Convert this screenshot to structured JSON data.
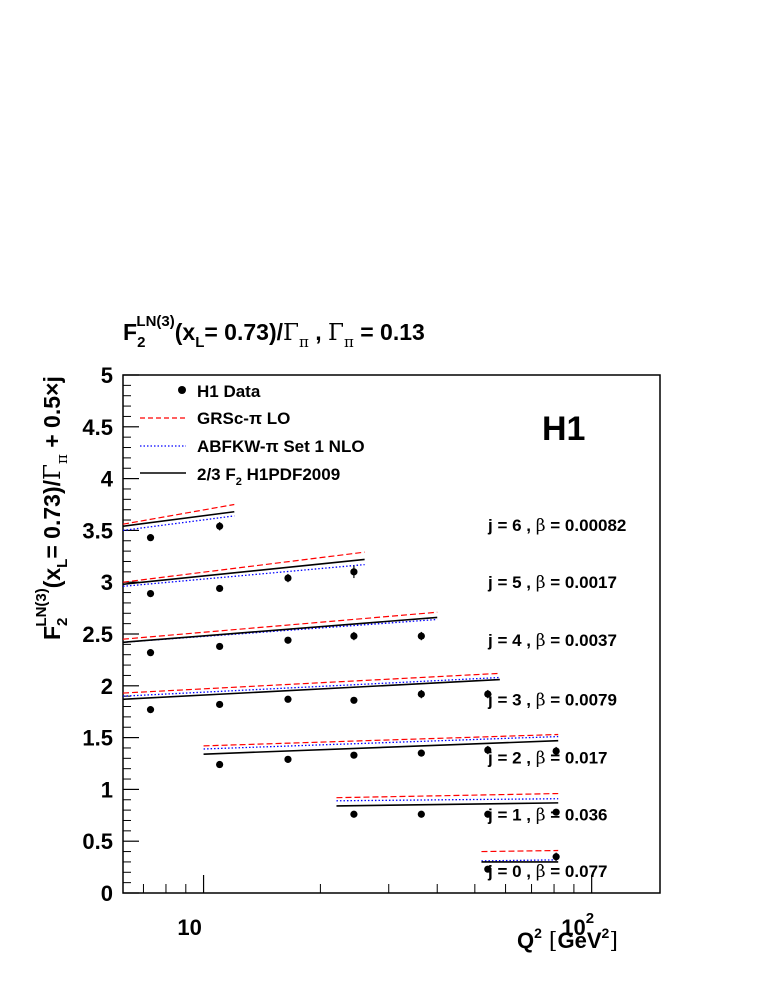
{
  "chart_data": {
    "type": "scatter",
    "title": {
      "F": "F",
      "sub": "2",
      "sup": "LN(3)",
      "arg": "(x",
      "argsub": "L",
      "argrest": "= 0.73)/",
      "gamma": "Γ",
      "gammasub": "π",
      "comma": " , ",
      "gamma2": "Γ",
      "gamma2sub": "π",
      "eq": " = 0.13"
    },
    "ylabel": {
      "F": "F",
      "sub": "2",
      "sup": "LN(3)",
      "arg": "(x",
      "argsub": "L",
      "argrest": "= 0.73)/",
      "gamma": "Γ",
      "gammasub": "π",
      "tail": " + 0.5×j"
    },
    "xlabel": {
      "Q": "Q",
      "sup": "2",
      "lb": " [",
      "unit": "GeV",
      "unitsup": "2",
      "rb": "]"
    },
    "x_scale": "log",
    "xlim": [
      6.2,
      150
    ],
    "ylim": [
      0,
      5
    ],
    "y_ticks": [
      "0",
      "0.5",
      "1",
      "1.5",
      "2",
      "2.5",
      "3",
      "3.5",
      "4",
      "4.5",
      "5"
    ],
    "x_ticks": [
      {
        "value": 10,
        "label": "10",
        "sup": ""
      },
      {
        "value": 100,
        "label": "10",
        "sup": "2"
      }
    ],
    "experiment": "H1",
    "legend": {
      "placement": "top-left",
      "entries": [
        {
          "style": "marker",
          "label": "H1 Data",
          "color": "#000000"
        },
        {
          "style": "dashed",
          "label": "GRSc-π LO",
          "color": "#ff0000"
        },
        {
          "style": "dotted",
          "label": "ABFKW-π Set 1 NLO",
          "color": "#0000ff"
        },
        {
          "style": "solid",
          "label": "2/3 F",
          "sub": "2",
          "rest": "  H1PDF2009",
          "color": "#000000"
        }
      ]
    },
    "bins": [
      {
        "label": "j = 6 , ",
        "beta_symbol": "β",
        "beta_text": " = 0.00082",
        "label_y": 3.55,
        "points": [
          [
            7.3,
            3.43,
            0.02
          ],
          [
            11.0,
            3.54,
            0.04
          ]
        ],
        "x_range": [
          6.2,
          12.0
        ],
        "grsc": [
          3.56,
          3.75
        ],
        "abfkw": [
          3.5,
          3.64
        ],
        "h1pdf": [
          3.54,
          3.68
        ]
      },
      {
        "label": "j = 5 , ",
        "beta_symbol": "β",
        "beta_text": " = 0.0017",
        "label_y": 3.0,
        "points": [
          [
            7.3,
            2.89,
            0.02
          ],
          [
            11.0,
            2.94,
            0.02
          ],
          [
            16.5,
            3.04,
            0.04
          ],
          [
            24.4,
            3.1,
            0.06
          ]
        ],
        "x_range": [
          6.2,
          26.0
        ],
        "grsc": [
          3.0,
          3.29
        ],
        "abfkw": [
          2.96,
          3.17
        ],
        "h1pdf": [
          2.98,
          3.22
        ]
      },
      {
        "label": "j = 4 , ",
        "beta_symbol": "β",
        "beta_text": " = 0.0037",
        "label_y": 2.44,
        "points": [
          [
            7.3,
            2.32,
            0.02
          ],
          [
            11.0,
            2.38,
            0.02
          ],
          [
            16.5,
            2.44,
            0.03
          ],
          [
            24.4,
            2.48,
            0.04
          ],
          [
            36.4,
            2.48,
            0.04
          ]
        ],
        "x_range": [
          6.2,
          40.0
        ],
        "grsc": [
          2.45,
          2.71
        ],
        "abfkw": [
          2.42,
          2.64
        ],
        "h1pdf": [
          2.42,
          2.66
        ]
      },
      {
        "label": "j = 3 , ",
        "beta_symbol": "β",
        "beta_text": " = 0.0079",
        "label_y": 1.87,
        "points": [
          [
            7.3,
            1.77,
            0.02
          ],
          [
            11.0,
            1.82,
            0.02
          ],
          [
            16.5,
            1.87,
            0.02
          ],
          [
            24.4,
            1.86,
            0.02
          ],
          [
            36.4,
            1.92,
            0.04
          ],
          [
            54.0,
            1.92,
            0.04
          ]
        ],
        "x_range": [
          6.2,
          58.0
        ],
        "grsc": [
          1.93,
          2.12
        ],
        "abfkw": [
          1.9,
          2.08
        ],
        "h1pdf": [
          1.87,
          2.06
        ]
      },
      {
        "label": "j = 2 , ",
        "beta_symbol": "β",
        "beta_text": " = 0.017",
        "label_y": 1.31,
        "points": [
          [
            11.0,
            1.24,
            0.02
          ],
          [
            16.5,
            1.29,
            0.02
          ],
          [
            24.4,
            1.33,
            0.02
          ],
          [
            36.4,
            1.35,
            0.02
          ],
          [
            54.0,
            1.38,
            0.04
          ],
          [
            81.0,
            1.37,
            0.04
          ]
        ],
        "x_range": [
          10.0,
          82.0
        ],
        "grsc": [
          1.42,
          1.53
        ],
        "abfkw": [
          1.39,
          1.51
        ],
        "h1pdf": [
          1.34,
          1.47
        ]
      },
      {
        "label": "j = 1 , ",
        "beta_symbol": "β",
        "beta_text": " = 0.036",
        "label_y": 0.76,
        "points": [
          [
            24.4,
            0.76,
            0.02
          ],
          [
            36.4,
            0.76,
            0.02
          ],
          [
            54.0,
            0.76,
            0.02
          ],
          [
            81.0,
            0.78,
            0.03
          ]
        ],
        "x_range": [
          22.0,
          82.0
        ],
        "grsc": [
          0.92,
          0.96
        ],
        "abfkw": [
          0.89,
          0.91
        ],
        "h1pdf": [
          0.84,
          0.87
        ]
      },
      {
        "label": "j = 0 , ",
        "beta_symbol": "β",
        "beta_text": " = 0.077",
        "label_y": 0.21,
        "points": [
          [
            54.0,
            0.23,
            0.02
          ],
          [
            81.0,
            0.35,
            0.04
          ]
        ],
        "x_range": [
          52.0,
          82.0
        ],
        "grsc": [
          0.4,
          0.41
        ],
        "abfkw": [
          0.31,
          0.32
        ],
        "h1pdf": [
          0.3,
          0.3
        ]
      }
    ]
  }
}
